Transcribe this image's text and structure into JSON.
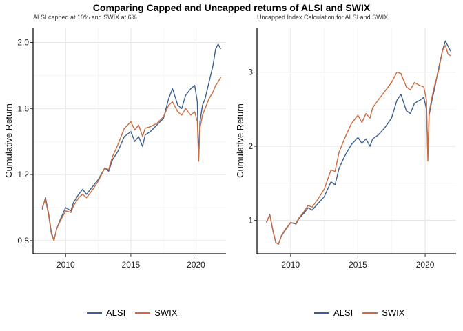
{
  "title": "Comparing Capped and Uncapped returns of ALSI and SWIX",
  "colors": {
    "ALSI": "#3D5F8F",
    "SWIX": "#CB6B3E"
  },
  "chart_data": [
    {
      "type": "line",
      "subtitle": "ALSI capped at 10% and SWIX at 6%",
      "xlabel": "",
      "ylabel": "Cumulative Return",
      "xlim": [
        2007.5,
        2022.3
      ],
      "ylim": [
        0.72,
        2.09
      ],
      "x_ticks": [
        2010,
        2015,
        2020
      ],
      "y_ticks": [
        0.8,
        1.2,
        1.6,
        2.0
      ],
      "y_tick_labels": [
        "0.8",
        "1.2",
        "1.6",
        "2.0"
      ],
      "grid": true,
      "legend_position": "bottom",
      "series": [
        {
          "name": "ALSI",
          "x": [
            2008.2,
            2008.45,
            2008.7,
            2008.9,
            2009.1,
            2009.3,
            2009.6,
            2010.0,
            2010.4,
            2010.6,
            2011.0,
            2011.3,
            2011.6,
            2012.0,
            2012.5,
            2013.0,
            2013.3,
            2013.6,
            2014.0,
            2014.5,
            2015.0,
            2015.3,
            2015.6,
            2015.9,
            2016.1,
            2016.5,
            2017.0,
            2017.5,
            2017.9,
            2018.2,
            2018.6,
            2018.9,
            2019.2,
            2019.6,
            2019.9,
            2020.1,
            2020.2,
            2020.3,
            2020.5,
            2020.7,
            2021.0,
            2021.3,
            2021.5,
            2021.7,
            2021.9
          ],
          "values": [
            0.99,
            1.06,
            0.96,
            0.85,
            0.8,
            0.87,
            0.93,
            1.0,
            0.98,
            1.03,
            1.08,
            1.11,
            1.08,
            1.12,
            1.17,
            1.24,
            1.22,
            1.29,
            1.34,
            1.43,
            1.46,
            1.4,
            1.43,
            1.37,
            1.44,
            1.46,
            1.5,
            1.54,
            1.66,
            1.72,
            1.62,
            1.6,
            1.68,
            1.72,
            1.74,
            1.64,
            1.3,
            1.52,
            1.62,
            1.66,
            1.76,
            1.86,
            1.96,
            1.99,
            1.96
          ]
        },
        {
          "name": "SWIX",
          "x": [
            2008.2,
            2008.45,
            2008.7,
            2008.9,
            2009.1,
            2009.3,
            2009.6,
            2010.0,
            2010.4,
            2010.6,
            2011.0,
            2011.3,
            2011.6,
            2012.0,
            2012.5,
            2013.0,
            2013.3,
            2013.6,
            2014.0,
            2014.5,
            2015.0,
            2015.3,
            2015.6,
            2015.9,
            2016.1,
            2016.5,
            2017.0,
            2017.5,
            2017.9,
            2018.2,
            2018.6,
            2018.9,
            2019.2,
            2019.6,
            2019.9,
            2020.1,
            2020.2,
            2020.3,
            2020.5,
            2020.7,
            2021.0,
            2021.3,
            2021.5,
            2021.7,
            2021.9
          ],
          "values": [
            1.0,
            1.05,
            0.95,
            0.84,
            0.8,
            0.87,
            0.92,
            0.98,
            0.97,
            1.01,
            1.06,
            1.08,
            1.06,
            1.1,
            1.16,
            1.24,
            1.23,
            1.31,
            1.38,
            1.48,
            1.52,
            1.47,
            1.5,
            1.43,
            1.48,
            1.49,
            1.51,
            1.55,
            1.62,
            1.64,
            1.58,
            1.56,
            1.6,
            1.56,
            1.58,
            1.52,
            1.28,
            1.48,
            1.56,
            1.6,
            1.66,
            1.7,
            1.74,
            1.76,
            1.79
          ]
        }
      ]
    },
    {
      "type": "line",
      "subtitle": "Uncapped Index Calculation for ALSI and SWIX",
      "xlabel": "",
      "ylabel": "Cumulative Return",
      "xlim": [
        2007.5,
        2022.3
      ],
      "ylim": [
        0.55,
        3.6
      ],
      "x_ticks": [
        2010,
        2015,
        2020
      ],
      "y_ticks": [
        1,
        2,
        3
      ],
      "y_tick_labels": [
        "1",
        "2",
        "3"
      ],
      "grid": true,
      "legend_position": "bottom",
      "series": [
        {
          "name": "ALSI",
          "x": [
            2008.2,
            2008.45,
            2008.7,
            2008.9,
            2009.1,
            2009.3,
            2009.6,
            2010.0,
            2010.4,
            2010.6,
            2011.0,
            2011.3,
            2011.6,
            2012.0,
            2012.5,
            2013.0,
            2013.3,
            2013.6,
            2014.0,
            2014.5,
            2015.0,
            2015.3,
            2015.6,
            2015.9,
            2016.1,
            2016.5,
            2017.0,
            2017.5,
            2017.9,
            2018.2,
            2018.6,
            2018.9,
            2019.2,
            2019.6,
            2019.9,
            2020.1,
            2020.2,
            2020.3,
            2020.5,
            2020.7,
            2021.0,
            2021.3,
            2021.5,
            2021.7,
            2021.9
          ],
          "values": [
            0.97,
            1.08,
            0.85,
            0.7,
            0.68,
            0.78,
            0.87,
            0.97,
            0.95,
            1.02,
            1.1,
            1.17,
            1.14,
            1.22,
            1.32,
            1.52,
            1.48,
            1.7,
            1.86,
            2.02,
            2.12,
            2.04,
            2.1,
            2.0,
            2.1,
            2.15,
            2.25,
            2.38,
            2.62,
            2.7,
            2.48,
            2.44,
            2.58,
            2.62,
            2.66,
            2.5,
            1.88,
            2.42,
            2.62,
            2.78,
            3.05,
            3.3,
            3.42,
            3.35,
            3.28
          ]
        },
        {
          "name": "SWIX",
          "x": [
            2008.2,
            2008.45,
            2008.7,
            2008.9,
            2009.1,
            2009.3,
            2009.6,
            2010.0,
            2010.4,
            2010.6,
            2011.0,
            2011.3,
            2011.6,
            2012.0,
            2012.5,
            2013.0,
            2013.3,
            2013.6,
            2014.0,
            2014.5,
            2015.0,
            2015.3,
            2015.6,
            2015.9,
            2016.1,
            2016.5,
            2017.0,
            2017.5,
            2017.9,
            2018.2,
            2018.6,
            2018.9,
            2019.2,
            2019.6,
            2019.9,
            2020.1,
            2020.2,
            2020.3,
            2020.5,
            2020.7,
            2021.0,
            2021.3,
            2021.5,
            2021.7,
            2021.9
          ],
          "values": [
            0.98,
            1.07,
            0.85,
            0.7,
            0.68,
            0.79,
            0.88,
            0.97,
            0.96,
            1.03,
            1.12,
            1.2,
            1.18,
            1.28,
            1.42,
            1.68,
            1.66,
            1.92,
            2.1,
            2.3,
            2.42,
            2.32,
            2.44,
            2.38,
            2.52,
            2.62,
            2.74,
            2.86,
            3.0,
            2.98,
            2.8,
            2.76,
            2.86,
            2.82,
            2.8,
            2.62,
            1.8,
            2.46,
            2.66,
            2.82,
            3.02,
            3.3,
            3.36,
            3.24,
            3.22
          ]
        }
      ]
    }
  ]
}
